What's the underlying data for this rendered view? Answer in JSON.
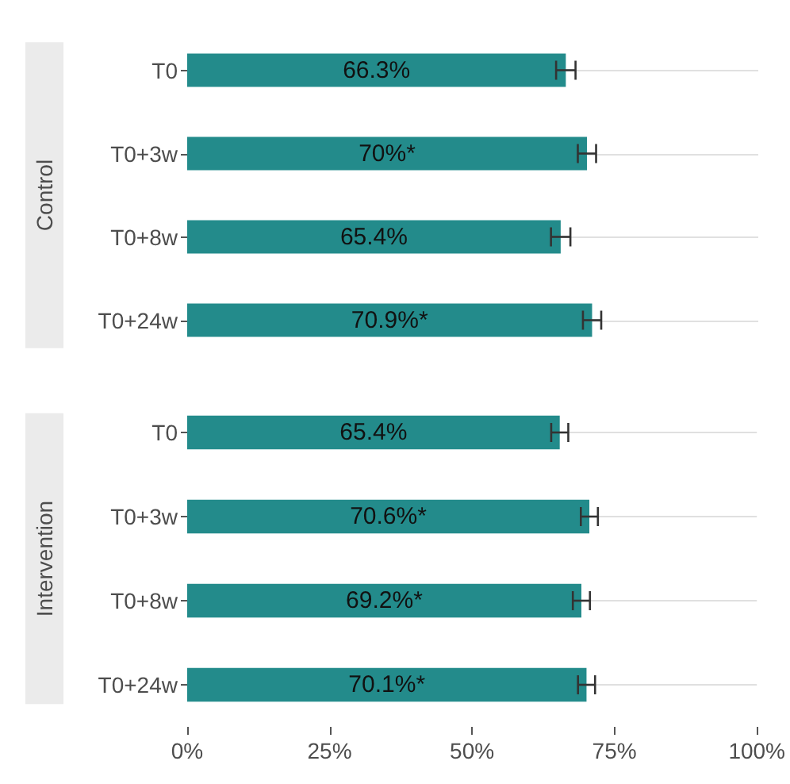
{
  "chart_data": [
    {
      "type": "bar",
      "orientation": "horizontal",
      "ylabel": "Control",
      "categories": [
        "T0",
        "T0+3w",
        "T0+8w",
        "T0+24w"
      ],
      "values": [
        66.3,
        70,
        65.4,
        70.9
      ],
      "value_labels": [
        "66.3%",
        "70%*",
        "65.4%",
        "70.9%*"
      ],
      "errors": [
        1.7,
        1.6,
        1.7,
        1.6
      ],
      "color": "#238b8b",
      "xlim": [
        0,
        100
      ],
      "grid": "y",
      "tick_labels": "y"
    },
    {
      "type": "bar",
      "orientation": "horizontal",
      "ylabel": "Intervention",
      "categories": [
        "T0",
        "T0+3w",
        "T0+8w",
        "T0+24w"
      ],
      "values": [
        65.4,
        70.6,
        69.2,
        70.1
      ],
      "value_labels": [
        "65.4%",
        "70.6%*",
        "69.2%*",
        "70.1%*"
      ],
      "errors": [
        1.5,
        1.5,
        1.5,
        1.5
      ],
      "color": "#238b8b",
      "xlim": [
        0,
        100
      ],
      "xticks": [
        {
          "value": 0,
          "label": "0%"
        },
        {
          "value": 25,
          "label": "25%"
        },
        {
          "value": 50,
          "label": "50%"
        },
        {
          "value": 75,
          "label": "75%"
        },
        {
          "value": 100,
          "label": "100%"
        }
      ],
      "grid": "y"
    }
  ]
}
